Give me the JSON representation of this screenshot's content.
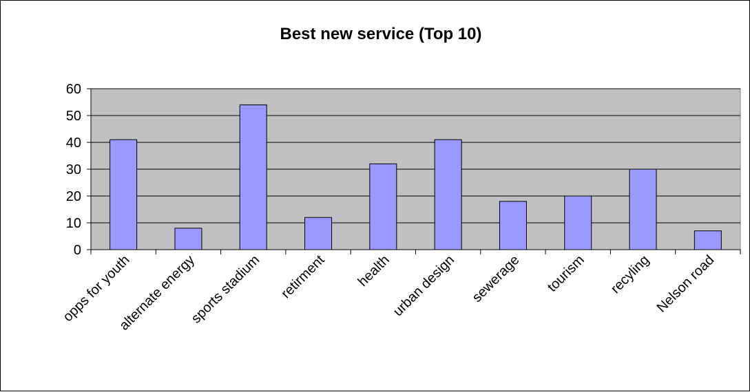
{
  "chart_data": {
    "type": "bar",
    "title": "Best new service (Top 10)",
    "categories": [
      "opps for youth",
      "alternate energy",
      "sports stadium",
      "retirment",
      "health",
      "urban design",
      "sewerage",
      "tourism",
      "recyling",
      "Nelson road"
    ],
    "values": [
      41,
      8,
      54,
      12,
      32,
      41,
      18,
      20,
      30,
      7
    ],
    "ylim": [
      0,
      60
    ],
    "yticks": [
      "0",
      "10",
      "20",
      "30",
      "40",
      "50",
      "60"
    ],
    "grid": true,
    "legend": "none"
  },
  "colors": {
    "plot_background": "#c0c0c0",
    "bar_fill": "#9999ff",
    "bar_stroke": "#000000",
    "gridline": "#000000"
  }
}
